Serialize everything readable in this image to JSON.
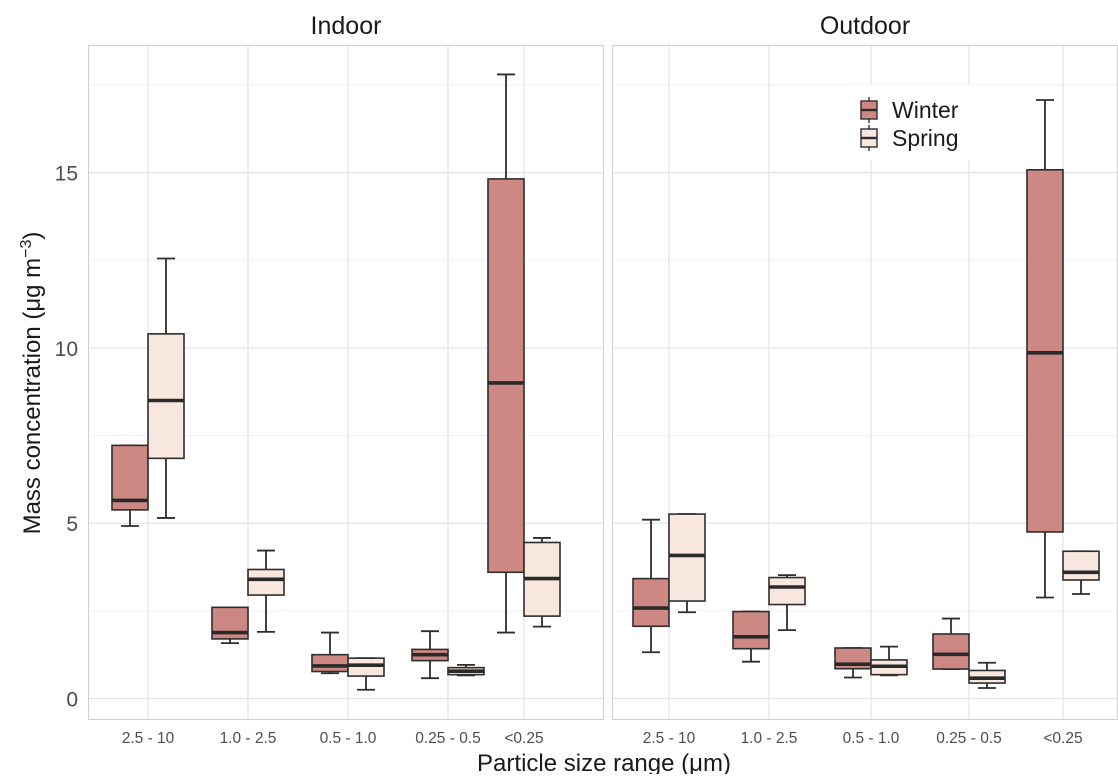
{
  "chart_data": {
    "type": "box",
    "xlabel": "Particle size range (μm)",
    "ylabel_main": "Mass concentration (μg m",
    "ylabel_sup": "−3",
    "ylabel_tail": ")",
    "ylim": [
      -0.5,
      18.2
    ],
    "yticks": [
      0,
      5,
      10,
      15
    ],
    "grid": true,
    "legend_position": "top-right",
    "categories": [
      "2.5 - 10",
      "1.0 - 2.5",
      "0.5 - 1.0",
      "0.25 - 0.5",
      "<0.25"
    ],
    "series": [
      {
        "name": "Winter",
        "color": "#ce8884"
      },
      {
        "name": "Spring",
        "color": "#f7e7de"
      }
    ],
    "panels": [
      {
        "title": "Indoor",
        "groups": [
          {
            "winter": {
              "min": 4.92,
              "q1": 5.38,
              "median": 5.65,
              "q3": 7.22,
              "max": 7.22
            },
            "spring": {
              "min": 5.15,
              "q1": 6.85,
              "median": 8.5,
              "q3": 10.4,
              "max": 12.55
            }
          },
          {
            "winter": {
              "min": 1.58,
              "q1": 1.7,
              "median": 1.88,
              "q3": 2.6,
              "max": 2.6
            },
            "spring": {
              "min": 1.9,
              "q1": 2.95,
              "median": 3.4,
              "q3": 3.68,
              "max": 4.22
            }
          },
          {
            "winter": {
              "min": 0.72,
              "q1": 0.77,
              "median": 0.93,
              "q3": 1.25,
              "max": 1.88
            },
            "spring": {
              "min": 0.25,
              "q1": 0.64,
              "median": 0.95,
              "q3": 1.15,
              "max": 1.15
            }
          },
          {
            "winter": {
              "min": 0.58,
              "q1": 1.08,
              "median": 1.25,
              "q3": 1.4,
              "max": 1.92
            },
            "spring": {
              "min": 0.66,
              "q1": 0.68,
              "median": 0.78,
              "q3": 0.88,
              "max": 0.96
            }
          },
          {
            "winter": {
              "min": 1.88,
              "q1": 3.6,
              "median": 9.0,
              "q3": 14.82,
              "max": 17.8
            },
            "spring": {
              "min": 2.05,
              "q1": 2.35,
              "median": 3.42,
              "q3": 4.45,
              "max": 4.58
            }
          }
        ]
      },
      {
        "title": "Outdoor",
        "groups": [
          {
            "winter": {
              "min": 1.32,
              "q1": 2.06,
              "median": 2.58,
              "q3": 3.42,
              "max": 5.1
            },
            "spring": {
              "min": 2.46,
              "q1": 2.78,
              "median": 4.08,
              "q3": 5.26,
              "max": 5.26
            }
          },
          {
            "winter": {
              "min": 1.05,
              "q1": 1.42,
              "median": 1.76,
              "q3": 2.48,
              "max": 2.48
            },
            "spring": {
              "min": 1.95,
              "q1": 2.68,
              "median": 3.18,
              "q3": 3.45,
              "max": 3.52
            }
          },
          {
            "winter": {
              "min": 0.6,
              "q1": 0.85,
              "median": 0.98,
              "q3": 1.44,
              "max": 1.44
            },
            "spring": {
              "min": 0.66,
              "q1": 0.68,
              "median": 0.92,
              "q3": 1.1,
              "max": 1.48
            }
          },
          {
            "winter": {
              "min": 0.84,
              "q1": 0.84,
              "median": 1.26,
              "q3": 1.84,
              "max": 2.28
            },
            "spring": {
              "min": 0.3,
              "q1": 0.44,
              "median": 0.58,
              "q3": 0.8,
              "max": 1.02
            }
          },
          {
            "winter": {
              "min": 2.88,
              "q1": 4.75,
              "median": 9.86,
              "q3": 15.08,
              "max": 17.07
            },
            "spring": {
              "min": 2.98,
              "q1": 3.38,
              "median": 3.6,
              "q3": 4.2,
              "max": 4.2
            }
          }
        ]
      }
    ]
  }
}
